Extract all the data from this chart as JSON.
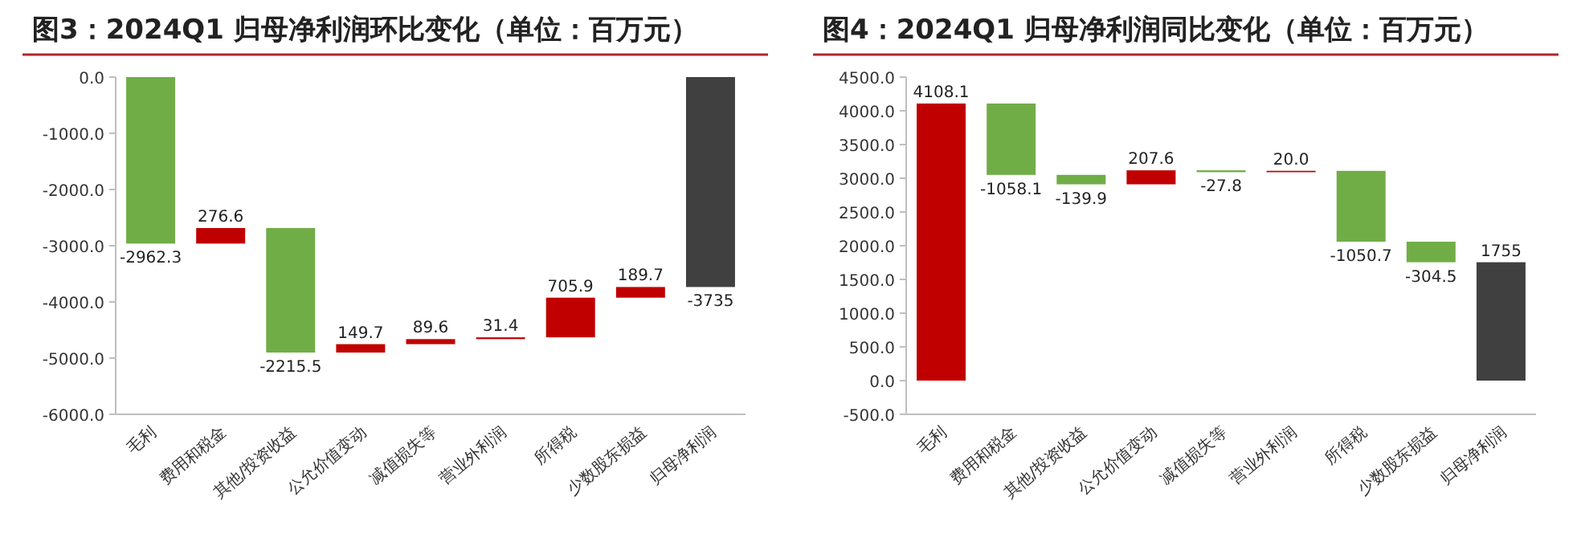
{
  "chart_data": [
    {
      "type": "bar",
      "title": "图3：2024Q1 归母净利润环比变化（单位：百万元）",
      "categories": [
        "毛利",
        "费用和税金",
        "其他/投资收益",
        "公允价值变动",
        "减值损失等",
        "营业外利润",
        "所得税",
        "少数股东损益",
        "归母净利润"
      ],
      "values": [
        -2962.3,
        276.6,
        -2215.5,
        149.7,
        89.6,
        31.4,
        705.9,
        189.7,
        -3735
      ],
      "base": [
        0,
        -2962.3,
        -2685.7,
        -4901.2,
        -4751.5,
        -4661.9,
        -4630.5,
        -3924.6,
        0
      ],
      "colors": [
        "#70ad47",
        "#c00000",
        "#70ad47",
        "#c00000",
        "#c00000",
        "#c00000",
        "#c00000",
        "#c00000",
        "#404040"
      ],
      "value_labels": [
        "-2962.3",
        "276.6",
        "-2215.5",
        "149.7",
        "89.6",
        "31.4",
        "705.9",
        "189.7",
        "-3735"
      ],
      "ylim": [
        -6000,
        0
      ],
      "yticks": [
        {
          "value": -6000,
          "label": "-6000.0"
        },
        {
          "value": -5000,
          "label": "-5000.0"
        },
        {
          "value": -4000,
          "label": "-4000.0"
        },
        {
          "value": -3000,
          "label": "-3000.0"
        },
        {
          "value": -2000,
          "label": "-2000.0"
        },
        {
          "value": -1000,
          "label": "-1000.0"
        },
        {
          "value": 0,
          "label": "0.0"
        }
      ]
    },
    {
      "type": "bar",
      "title": "图4：2024Q1 归母净利润同比变化（单位：百万元）",
      "categories": [
        "毛利",
        "费用和税金",
        "其他/投资收益",
        "公允价值变动",
        "减值损失等",
        "营业外利润",
        "所得税",
        "少数股东损益",
        "归母净利润"
      ],
      "values": [
        4108.1,
        -1058.1,
        -139.9,
        207.6,
        -27.8,
        20.0,
        -1050.7,
        -304.5,
        1755
      ],
      "base": [
        0,
        4108.1,
        3050.0,
        2910.1,
        3117.7,
        3089.9,
        3109.9,
        2059.2,
        0
      ],
      "colors": [
        "#c00000",
        "#70ad47",
        "#70ad47",
        "#c00000",
        "#70ad47",
        "#c00000",
        "#70ad47",
        "#70ad47",
        "#404040"
      ],
      "value_labels": [
        "4108.1",
        "-1058.1",
        "-139.9",
        "207.6",
        "-27.8",
        "20.0",
        "-1050.7",
        "-304.5",
        "1755"
      ],
      "ylim": [
        -500,
        4500
      ],
      "yticks": [
        {
          "value": -500,
          "label": "-500.0"
        },
        {
          "value": 0,
          "label": "0.0"
        },
        {
          "value": 500,
          "label": "500.0"
        },
        {
          "value": 1000,
          "label": "1000.0"
        },
        {
          "value": 1500,
          "label": "1500.0"
        },
        {
          "value": 2000,
          "label": "2000.0"
        },
        {
          "value": 2500,
          "label": "2500.0"
        },
        {
          "value": 3000,
          "label": "3000.0"
        },
        {
          "value": 3500,
          "label": "3500.0"
        },
        {
          "value": 4000,
          "label": "4000.0"
        },
        {
          "value": 4500,
          "label": "4500.0"
        }
      ]
    }
  ]
}
